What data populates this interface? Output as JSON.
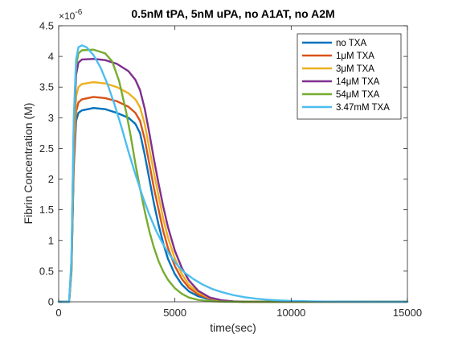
{
  "chart_data": {
    "type": "line",
    "title": "0.5nM tPA, 5nM uPA, no A1AT, no A2M",
    "xlabel": "time(sec)",
    "ylabel": "Fibrin Concentration (M)",
    "xlim": [
      0,
      15000
    ],
    "ylim": [
      0,
      4.5
    ],
    "y_multiplier_label": "×10",
    "y_multiplier_exponent": "-6",
    "xticks": [
      0,
      5000,
      10000,
      15000
    ],
    "xtick_labels": [
      "0",
      "5000",
      "10000",
      "15000"
    ],
    "yticks": [
      0,
      0.5,
      1,
      1.5,
      2,
      2.5,
      3,
      3.5,
      4,
      4.5
    ],
    "ytick_labels": [
      "0",
      "0.5",
      "1",
      "1.5",
      "2",
      "2.5",
      "3",
      "3.5",
      "4",
      "4.5"
    ],
    "grid": false,
    "legend_position": "top-right",
    "series": [
      {
        "name": "no TXA",
        "color": "#0072BD",
        "points": [
          [
            0,
            0
          ],
          [
            450,
            0
          ],
          [
            550,
            0.5
          ],
          [
            650,
            2.2
          ],
          [
            750,
            2.95
          ],
          [
            850,
            3.08
          ],
          [
            1000,
            3.12
          ],
          [
            1500,
            3.16
          ],
          [
            2000,
            3.14
          ],
          [
            2500,
            3.08
          ],
          [
            3000,
            3.0
          ],
          [
            3300,
            2.9
          ],
          [
            3500,
            2.75
          ],
          [
            3700,
            2.4
          ],
          [
            3900,
            2.0
          ],
          [
            4100,
            1.6
          ],
          [
            4300,
            1.25
          ],
          [
            4500,
            0.95
          ],
          [
            4700,
            0.7
          ],
          [
            5000,
            0.45
          ],
          [
            5300,
            0.28
          ],
          [
            5600,
            0.17
          ],
          [
            6000,
            0.09
          ],
          [
            6500,
            0.04
          ],
          [
            7000,
            0.015
          ],
          [
            7500,
            0.005
          ],
          [
            8000,
            0
          ],
          [
            15000,
            0
          ]
        ]
      },
      {
        "name": "1μM TXA",
        "color": "#D95319",
        "points": [
          [
            0,
            0
          ],
          [
            450,
            0
          ],
          [
            550,
            0.5
          ],
          [
            650,
            2.3
          ],
          [
            750,
            3.1
          ],
          [
            850,
            3.25
          ],
          [
            1000,
            3.3
          ],
          [
            1500,
            3.34
          ],
          [
            2000,
            3.32
          ],
          [
            2500,
            3.27
          ],
          [
            3000,
            3.18
          ],
          [
            3300,
            3.08
          ],
          [
            3500,
            2.95
          ],
          [
            3700,
            2.65
          ],
          [
            3900,
            2.25
          ],
          [
            4100,
            1.85
          ],
          [
            4300,
            1.5
          ],
          [
            4500,
            1.15
          ],
          [
            4700,
            0.88
          ],
          [
            5000,
            0.58
          ],
          [
            5300,
            0.37
          ],
          [
            5600,
            0.23
          ],
          [
            6000,
            0.12
          ],
          [
            6500,
            0.05
          ],
          [
            7000,
            0.02
          ],
          [
            7500,
            0.005
          ],
          [
            8000,
            0
          ],
          [
            15000,
            0
          ]
        ]
      },
      {
        "name": "3μM TXA",
        "color": "#EDB120",
        "points": [
          [
            0,
            0
          ],
          [
            450,
            0
          ],
          [
            550,
            0.55
          ],
          [
            650,
            2.5
          ],
          [
            750,
            3.35
          ],
          [
            850,
            3.5
          ],
          [
            1000,
            3.55
          ],
          [
            1500,
            3.58
          ],
          [
            2000,
            3.56
          ],
          [
            2500,
            3.5
          ],
          [
            3000,
            3.4
          ],
          [
            3300,
            3.3
          ],
          [
            3500,
            3.17
          ],
          [
            3700,
            2.9
          ],
          [
            3900,
            2.5
          ],
          [
            4100,
            2.1
          ],
          [
            4300,
            1.72
          ],
          [
            4500,
            1.35
          ],
          [
            4700,
            1.05
          ],
          [
            5000,
            0.7
          ],
          [
            5300,
            0.45
          ],
          [
            5600,
            0.28
          ],
          [
            6000,
            0.15
          ],
          [
            6500,
            0.06
          ],
          [
            7000,
            0.02
          ],
          [
            7500,
            0.006
          ],
          [
            8000,
            0
          ],
          [
            15000,
            0
          ]
        ]
      },
      {
        "name": "14μM TXA",
        "color": "#7E2F8E",
        "points": [
          [
            0,
            0
          ],
          [
            450,
            0
          ],
          [
            550,
            0.6
          ],
          [
            650,
            2.8
          ],
          [
            750,
            3.7
          ],
          [
            850,
            3.9
          ],
          [
            1000,
            3.95
          ],
          [
            1500,
            3.96
          ],
          [
            2000,
            3.94
          ],
          [
            2500,
            3.88
          ],
          [
            3000,
            3.76
          ],
          [
            3300,
            3.62
          ],
          [
            3500,
            3.45
          ],
          [
            3700,
            3.15
          ],
          [
            3900,
            2.75
          ],
          [
            4100,
            2.32
          ],
          [
            4300,
            1.92
          ],
          [
            4500,
            1.55
          ],
          [
            4700,
            1.22
          ],
          [
            5000,
            0.83
          ],
          [
            5300,
            0.55
          ],
          [
            5600,
            0.35
          ],
          [
            6000,
            0.18
          ],
          [
            6500,
            0.07
          ],
          [
            7000,
            0.025
          ],
          [
            7500,
            0.008
          ],
          [
            8000,
            0
          ],
          [
            15000,
            0
          ]
        ]
      },
      {
        "name": "54μM TXA",
        "color": "#77AC30",
        "points": [
          [
            0,
            0
          ],
          [
            450,
            0
          ],
          [
            550,
            0.6
          ],
          [
            650,
            2.9
          ],
          [
            750,
            3.85
          ],
          [
            850,
            4.05
          ],
          [
            1000,
            4.1
          ],
          [
            1500,
            4.11
          ],
          [
            2000,
            4.05
          ],
          [
            2300,
            3.92
          ],
          [
            2600,
            3.6
          ],
          [
            2900,
            3.1
          ],
          [
            3100,
            2.7
          ],
          [
            3300,
            2.25
          ],
          [
            3500,
            1.85
          ],
          [
            3700,
            1.48
          ],
          [
            3900,
            1.15
          ],
          [
            4100,
            0.88
          ],
          [
            4300,
            0.66
          ],
          [
            4500,
            0.49
          ],
          [
            4700,
            0.36
          ],
          [
            5000,
            0.22
          ],
          [
            5300,
            0.13
          ],
          [
            5600,
            0.07
          ],
          [
            6000,
            0.03
          ],
          [
            6500,
            0.01
          ],
          [
            7000,
            0.003
          ],
          [
            7500,
            0
          ],
          [
            15000,
            0
          ]
        ]
      },
      {
        "name": "3.47mM TXA",
        "color": "#4DBEEE",
        "points": [
          [
            0,
            0
          ],
          [
            450,
            0
          ],
          [
            550,
            0.7
          ],
          [
            650,
            3.0
          ],
          [
            750,
            3.95
          ],
          [
            850,
            4.15
          ],
          [
            1000,
            4.18
          ],
          [
            1200,
            4.15
          ],
          [
            1500,
            4.02
          ],
          [
            1800,
            3.82
          ],
          [
            2100,
            3.55
          ],
          [
            2400,
            3.22
          ],
          [
            2700,
            2.85
          ],
          [
            3000,
            2.45
          ],
          [
            3300,
            2.08
          ],
          [
            3600,
            1.73
          ],
          [
            3900,
            1.42
          ],
          [
            4200,
            1.15
          ],
          [
            4500,
            0.93
          ],
          [
            4800,
            0.75
          ],
          [
            5100,
            0.6
          ],
          [
            5400,
            0.48
          ],
          [
            5800,
            0.37
          ],
          [
            6200,
            0.28
          ],
          [
            6600,
            0.21
          ],
          [
            7000,
            0.16
          ],
          [
            7500,
            0.11
          ],
          [
            8000,
            0.075
          ],
          [
            8500,
            0.05
          ],
          [
            9000,
            0.033
          ],
          [
            9500,
            0.022
          ],
          [
            10000,
            0.014
          ],
          [
            11000,
            0.006
          ],
          [
            12000,
            0.002
          ],
          [
            13000,
            0.001
          ],
          [
            15000,
            0
          ]
        ]
      }
    ]
  }
}
